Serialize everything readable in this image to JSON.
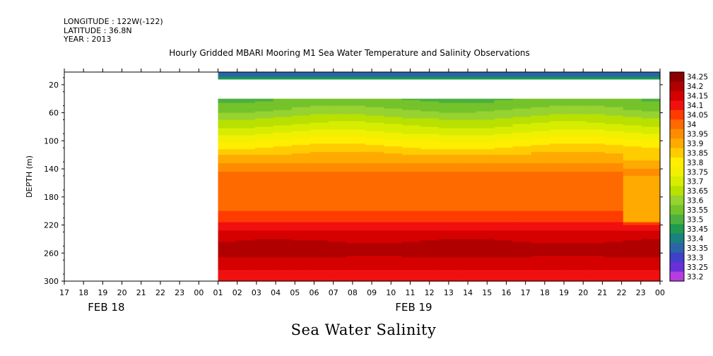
{
  "header": {
    "longitude": "LONGITUDE : 122W(-122)",
    "latitude": "LATITUDE : 36.8N",
    "year": "YEAR : 2013"
  },
  "title": "Hourly Gridded MBARI Mooring M1 Sea Water Temperature and Salinity Observations",
  "bottom_title": "Sea Water Salinity",
  "chart_data": {
    "type": "heatmap",
    "variable": "Sea Water Salinity",
    "ylabel": "DEPTH (m)",
    "y_ticks": [
      20,
      60,
      100,
      140,
      180,
      220,
      260,
      300
    ],
    "ylim": [
      300,
      2
    ],
    "x_ticks": [
      "17",
      "18",
      "19",
      "20",
      "21",
      "22",
      "23",
      "00",
      "01",
      "02",
      "03",
      "04",
      "05",
      "06",
      "07",
      "08",
      "09",
      "10",
      "11",
      "12",
      "13",
      "14",
      "15",
      "16",
      "17",
      "18",
      "19",
      "20",
      "21",
      "22",
      "23",
      "00"
    ],
    "day_labels": [
      {
        "label": "FEB 18",
        "at_index": 2
      },
      {
        "label": "FEB 19",
        "at_index": 18
      }
    ],
    "data_start_index": 8,
    "colorbar": {
      "labels": [
        "34.25",
        "34.2",
        "34.15",
        "34.1",
        "34.05",
        "34",
        "33.95",
        "33.9",
        "33.85",
        "33.8",
        "33.75",
        "33.7",
        "33.65",
        "33.6",
        "33.55",
        "33.5",
        "33.45",
        "33.4",
        "33.35",
        "33.3",
        "33.25",
        "33.2"
      ],
      "colors": [
        "#8b0000",
        "#b00000",
        "#d50000",
        "#f01010",
        "#ff3c00",
        "#ff6a00",
        "#ff8c00",
        "#ffaa00",
        "#ffcc00",
        "#ffee00",
        "#f0f000",
        "#d6ec00",
        "#b8e000",
        "#96d230",
        "#74c32a",
        "#4cb040",
        "#1f9a50",
        "#1a8080",
        "#2b65a8",
        "#4040c8",
        "#6a2fd8",
        "#b43ee0"
      ]
    },
    "depth_levels": [
      5,
      10,
      20,
      30,
      40,
      50,
      60,
      70,
      80,
      90,
      100,
      110,
      120,
      130,
      140,
      150,
      160,
      170,
      180,
      190,
      200,
      210,
      220,
      230,
      240,
      250,
      260,
      270,
      280,
      290,
      300
    ],
    "hours": [
      "01",
      "02",
      "03",
      "04",
      "05",
      "06",
      "07",
      "08",
      "09",
      "10",
      "11",
      "12",
      "13",
      "14",
      "15",
      "16",
      "17",
      "18",
      "19",
      "20",
      "21",
      "22",
      "23",
      "00"
    ],
    "no_data_depth_range": [
      12,
      40
    ],
    "profile": {
      "depths": [
        5,
        8,
        10,
        40,
        50,
        60,
        70,
        80,
        90,
        100,
        110,
        120,
        130,
        140,
        150,
        160,
        180,
        200,
        210,
        220,
        230,
        240,
        250,
        260,
        270,
        280,
        290,
        300
      ],
      "salinity": [
        33.38,
        33.38,
        33.48,
        33.55,
        33.58,
        33.62,
        33.67,
        33.71,
        33.76,
        33.81,
        33.86,
        33.9,
        33.94,
        33.98,
        34.02,
        34.03,
        34.04,
        34.05,
        34.08,
        34.12,
        34.16,
        34.19,
        34.22,
        34.22,
        34.19,
        34.16,
        34.13,
        34.1
      ]
    },
    "features": [
      {
        "hours": [
          "05",
          "06",
          "07"
        ],
        "depth_range": [
          150,
          200
        ],
        "value": 34.0
      },
      {
        "hours": [
          "18",
          "19"
        ],
        "depth_range": [
          175,
          200
        ],
        "value": 34.0
      },
      {
        "hours": [
          "23",
          "00"
        ],
        "depth_range": [
          150,
          215
        ],
        "value": 33.98
      }
    ]
  }
}
